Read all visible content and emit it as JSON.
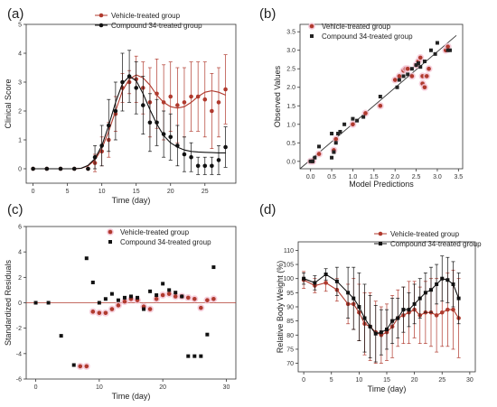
{
  "chart_data": [
    {
      "panel": "(a)",
      "type": "line",
      "xlabel": "Time (day)",
      "ylabel": "Clinical Score",
      "xlim": [
        -1,
        29.5
      ],
      "ylim": [
        -0.5,
        5
      ],
      "xticks": [
        0,
        5,
        10,
        15,
        20,
        25
      ],
      "yticks": [
        0,
        1,
        2,
        3,
        4,
        5
      ],
      "legend_position": "top-left",
      "series": [
        {
          "name": "Vehicle-treated group",
          "color": "#b03a2e",
          "marker": "circle",
          "x": [
            0,
            2,
            4,
            6,
            8,
            9,
            10,
            11,
            12,
            13,
            14,
            15,
            16,
            17,
            18,
            19,
            20,
            21,
            22,
            23,
            24,
            25,
            26,
            27,
            28
          ],
          "y": [
            0,
            0,
            0,
            0,
            0,
            0.2,
            0.6,
            1.0,
            1.9,
            2.8,
            3.0,
            3.1,
            2.8,
            2.3,
            2.6,
            2.3,
            2.5,
            2.2,
            2.3,
            2.5,
            2.5,
            2.4,
            2.0,
            2.3,
            2.75
          ],
          "err": [
            0,
            0,
            0,
            0,
            0,
            0.3,
            0.5,
            0.6,
            0.6,
            0.5,
            0.4,
            0.8,
            0.9,
            1.2,
            1.2,
            1.3,
            1.2,
            1.3,
            1.2,
            1.2,
            1.2,
            1.3,
            1.3,
            1.2,
            1.2
          ],
          "fit_x": [
            0,
            6,
            7,
            8,
            9,
            10,
            11,
            12,
            13,
            14,
            15,
            16,
            17,
            18,
            19,
            20,
            21,
            22,
            23,
            24,
            25,
            26,
            27,
            28
          ],
          "fit_y": [
            0,
            0,
            0.02,
            0.1,
            0.3,
            0.7,
            1.3,
            2.0,
            2.7,
            3.1,
            3.25,
            3.15,
            2.9,
            2.55,
            2.3,
            2.15,
            2.1,
            2.15,
            2.3,
            2.5,
            2.65,
            2.7,
            2.65,
            2.55
          ]
        },
        {
          "name": "Compound 34-treated group",
          "color": "#111111",
          "marker": "circle",
          "x": [
            0,
            2,
            4,
            6,
            8,
            9,
            10,
            11,
            12,
            13,
            14,
            15,
            16,
            17,
            18,
            19,
            20,
            21,
            22,
            23,
            24,
            25,
            26,
            27,
            28
          ],
          "y": [
            0,
            0,
            0,
            0,
            0,
            0.4,
            0.8,
            1.5,
            2.0,
            3.0,
            3.2,
            2.8,
            2.2,
            1.6,
            1.6,
            1.2,
            1.1,
            0.8,
            0.5,
            0.4,
            0.1,
            0.1,
            0.1,
            0.3,
            0.75
          ],
          "err": [
            0,
            0,
            0,
            0,
            0,
            0.4,
            0.7,
            0.9,
            1.0,
            1.0,
            0.9,
            0.9,
            1.0,
            1.0,
            0.8,
            0.8,
            0.8,
            0.7,
            0.6,
            0.5,
            0.3,
            0.3,
            0.3,
            0.5,
            0.7
          ],
          "fit_x": [
            0,
            6,
            7,
            8,
            9,
            10,
            11,
            12,
            13,
            14,
            15,
            16,
            17,
            18,
            19,
            20,
            21,
            22,
            23,
            24,
            25,
            26,
            27,
            28
          ],
          "fit_y": [
            0,
            0,
            0.02,
            0.12,
            0.35,
            0.8,
            1.5,
            2.3,
            2.95,
            3.2,
            3.05,
            2.6,
            2.05,
            1.55,
            1.15,
            0.9,
            0.75,
            0.65,
            0.6,
            0.58,
            0.57,
            0.56,
            0.55,
            0.55
          ]
        }
      ]
    },
    {
      "panel": "(b)",
      "type": "scatter",
      "xlabel": "Model Predictions",
      "ylabel": "Observed Values",
      "xlim": [
        -0.25,
        3.6
      ],
      "ylim": [
        -0.2,
        3.7
      ],
      "xticks": [
        0.0,
        0.5,
        1.0,
        1.5,
        2.0,
        2.5,
        3.0,
        3.5
      ],
      "yticks": [
        0.0,
        0.5,
        1.0,
        1.5,
        2.0,
        2.5,
        3.0,
        3.5
      ],
      "xtick_labels": [
        "0.0",
        "0.5",
        "1.0",
        "1.5",
        "2.0",
        "2.5",
        "3.0",
        "3.5"
      ],
      "ytick_labels": [
        "0.0",
        "0.5",
        "1.0",
        "1.5",
        "2.0",
        "2.5",
        "3.0",
        "3.5"
      ],
      "legend_position": "top-left",
      "identity_line": [
        [
          -0.25,
          -0.2
        ],
        [
          3.45,
          3.4
        ]
      ],
      "series": [
        {
          "name": "Vehicle-treated group",
          "color": "#b03a2e",
          "marker": "circle",
          "x": [
            0.0,
            0.05,
            0.2,
            0.55,
            0.6,
            1.0,
            1.3,
            1.65,
            2.0,
            2.1,
            2.2,
            2.25,
            2.3,
            2.4,
            2.5,
            2.55,
            2.6,
            2.65,
            2.65,
            2.7,
            2.75,
            2.8,
            3.2,
            3.25
          ],
          "y": [
            0.0,
            0.0,
            0.2,
            0.3,
            0.6,
            1.0,
            1.3,
            1.5,
            2.2,
            2.3,
            2.45,
            2.5,
            2.5,
            2.3,
            2.6,
            2.7,
            2.8,
            2.3,
            2.1,
            2.0,
            2.3,
            2.5,
            3.0,
            3.1
          ]
        },
        {
          "name": "Compound 34-treated group",
          "color": "#222222",
          "marker": "square",
          "x": [
            0.0,
            0.05,
            0.1,
            0.2,
            0.5,
            0.5,
            0.55,
            0.6,
            0.65,
            0.7,
            0.8,
            1.0,
            1.1,
            1.25,
            1.65,
            2.05,
            2.1,
            2.2,
            2.3,
            2.4,
            2.5,
            2.55,
            2.6,
            2.7,
            2.85,
            2.95,
            3.0,
            3.25,
            3.3
          ],
          "y": [
            0.0,
            0.0,
            0.1,
            0.4,
            0.75,
            0.1,
            0.25,
            0.5,
            0.75,
            0.8,
            1.0,
            1.15,
            1.1,
            1.2,
            1.75,
            2.0,
            2.2,
            2.3,
            2.35,
            2.5,
            2.6,
            2.65,
            2.55,
            2.7,
            3.0,
            2.9,
            3.2,
            3.0,
            3.0
          ]
        }
      ]
    },
    {
      "panel": "(c)",
      "type": "scatter",
      "xlabel": "Time (day)",
      "ylabel": "Standardized Residuals",
      "xlim": [
        -1.5,
        31.5
      ],
      "ylim": [
        -6,
        6
      ],
      "xticks": [
        0,
        10,
        20,
        30
      ],
      "yticks": [
        -6,
        -4,
        -2,
        0,
        2,
        4,
        6
      ],
      "reference_line": 0,
      "legend_position": "top-right",
      "series": [
        {
          "name": "Vehicle-treated group",
          "color": "#b03a2e",
          "marker": "circle",
          "x": [
            8,
            9,
            10,
            11,
            12,
            13,
            14,
            15,
            16,
            17,
            18,
            19,
            20,
            21,
            22,
            23,
            24,
            25,
            26,
            27,
            28
          ],
          "y": [
            -5,
            -0.7,
            -0.8,
            -0.8,
            -0.5,
            -0.2,
            0.1,
            0.3,
            0.2,
            -0.3,
            -0.5,
            0.3,
            0.6,
            0.7,
            0.5,
            0.5,
            0.4,
            0.3,
            -0.4,
            0.2,
            0.3
          ],
          "extra_x": [
            7
          ],
          "extra_y": [
            -5
          ]
        },
        {
          "name": "Compound 34-treated group",
          "color": "#111111",
          "marker": "square",
          "x": [
            0,
            2,
            4,
            6,
            8,
            9,
            10,
            11,
            12,
            13,
            14,
            15,
            16,
            17,
            18,
            19,
            20,
            21,
            22,
            23,
            24,
            25,
            26,
            27,
            28
          ],
          "y": [
            0,
            0,
            -2.6,
            -4.9,
            3.5,
            1.6,
            0,
            0.3,
            0.7,
            0.2,
            0.4,
            0.5,
            0.4,
            -0.5,
            0.9,
            0.6,
            1.5,
            1.0,
            0.8,
            0.5,
            -4.2,
            -4.2,
            -4.2,
            -2.5,
            2.8
          ]
        }
      ]
    },
    {
      "panel": "(d)",
      "type": "line",
      "xlabel": "Time (day)",
      "ylabel": "Relative Body Weight (%)",
      "xlim": [
        -1,
        31
      ],
      "ylim": [
        67,
        113
      ],
      "xticks": [
        0,
        5,
        10,
        15,
        20,
        25,
        30
      ],
      "yticks": [
        70,
        75,
        80,
        85,
        90,
        95,
        100,
        105,
        110
      ],
      "legend_position": "top-right",
      "series": [
        {
          "name": "Vehicle-treated group",
          "color": "#b03a2e",
          "marker": "circle",
          "x": [
            0,
            2,
            4,
            6,
            8,
            9,
            10,
            11,
            12,
            13,
            14,
            15,
            16,
            17,
            18,
            19,
            20,
            21,
            22,
            23,
            24,
            25,
            26,
            27,
            28
          ],
          "y": [
            99.5,
            97.5,
            98.5,
            96,
            91,
            91,
            88,
            84,
            83,
            81,
            80,
            81,
            83,
            86,
            87,
            88,
            89,
            87,
            88,
            88,
            87,
            88,
            89,
            89,
            86
          ],
          "err": [
            3,
            2.5,
            3,
            4,
            7,
            9,
            10,
            11,
            12,
            11,
            10,
            10,
            11,
            10,
            10,
            11,
            10,
            10,
            11,
            12,
            13,
            12,
            13,
            14,
            14
          ]
        },
        {
          "name": "Compound 34-treated group",
          "color": "#111111",
          "marker": "square",
          "x": [
            0,
            2,
            4,
            6,
            8,
            9,
            10,
            11,
            12,
            13,
            14,
            15,
            16,
            17,
            18,
            19,
            20,
            21,
            22,
            23,
            24,
            25,
            26,
            27,
            28
          ],
          "y": [
            100,
            98.5,
            101.5,
            99,
            95,
            93,
            90,
            86,
            83,
            80.5,
            81,
            82,
            85,
            86,
            89,
            89,
            91,
            93,
            95,
            96,
            98,
            100,
            99.5,
            98,
            93
          ],
          "err": [
            2,
            2.5,
            2,
            5,
            9,
            11,
            12,
            12,
            11,
            10,
            8,
            7,
            8,
            7,
            8,
            6,
            7,
            7,
            7,
            8,
            7,
            8,
            8,
            8,
            9
          ]
        }
      ]
    }
  ]
}
